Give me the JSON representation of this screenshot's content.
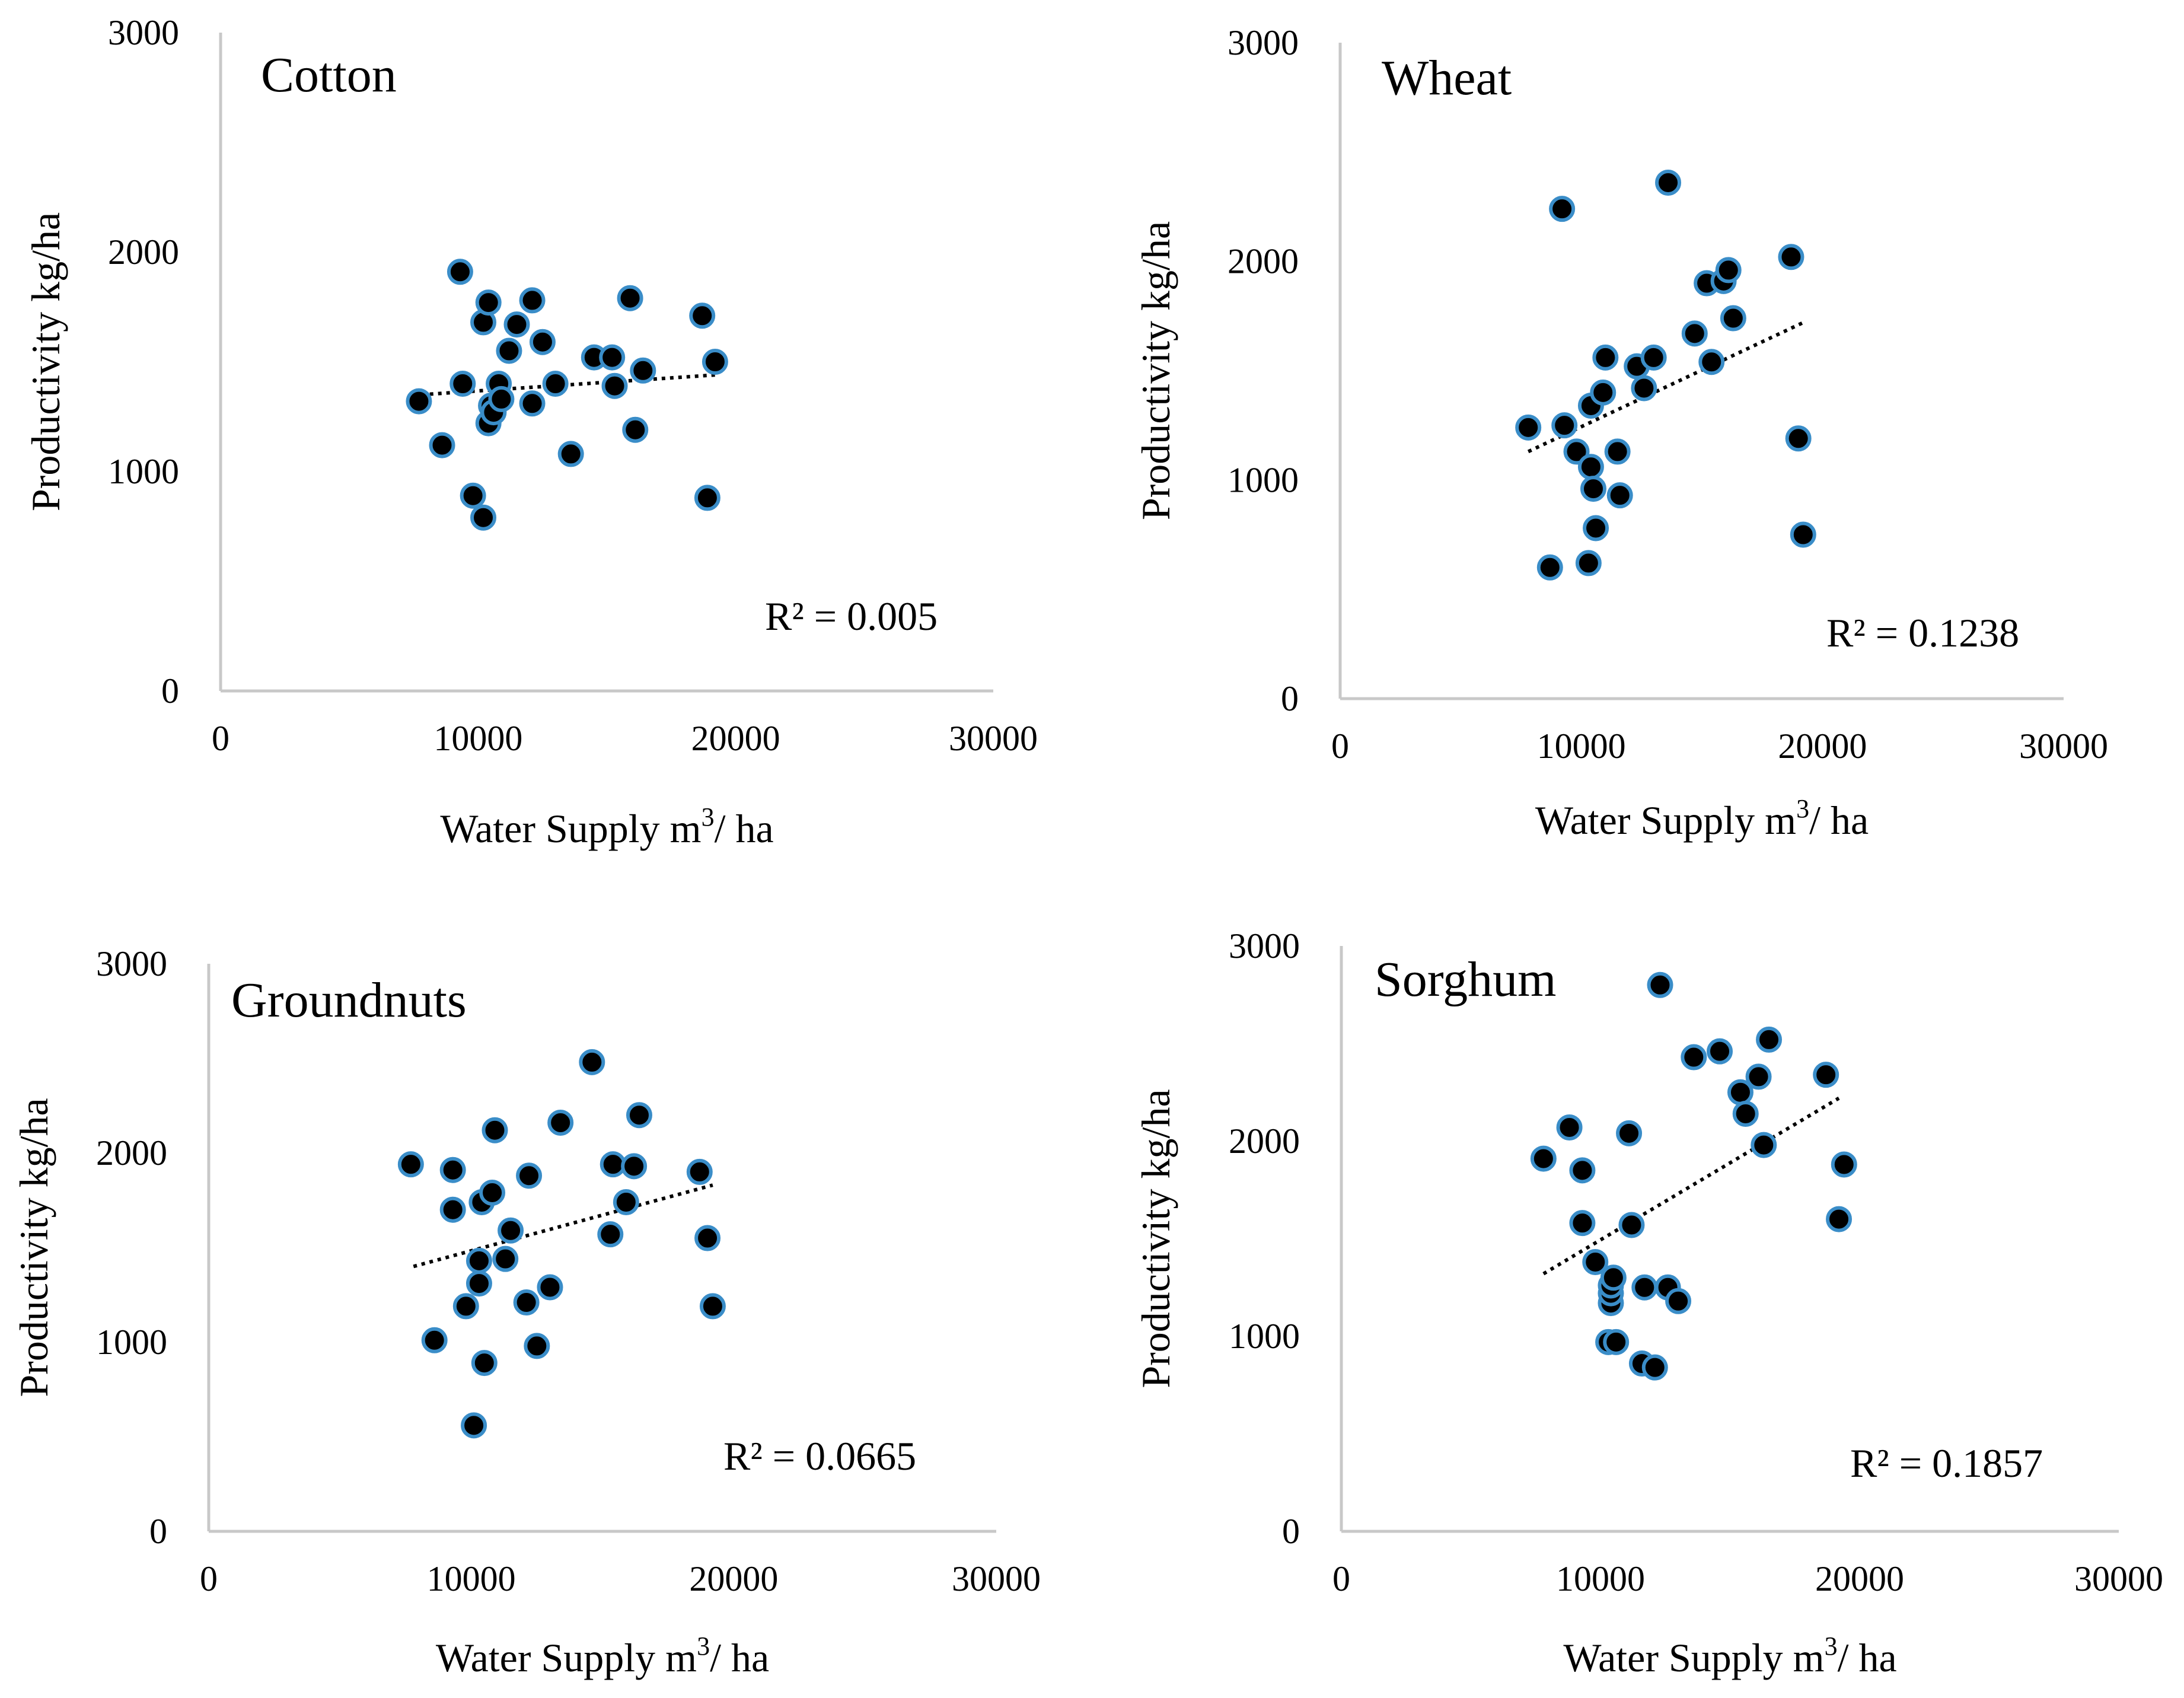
{
  "figure": {
    "marker_fill": "#000000",
    "marker_stroke": "#3a8dc8",
    "trendline_color": "#000000",
    "axis_color": "#c8c8c8"
  },
  "chart_data": [
    {
      "id": "cotton",
      "type": "scatter",
      "title": "Cotton",
      "xlabel": "Water Supply m3/ ha",
      "xlabel_main": "Water Supply m",
      "xlabel_sup": "3",
      "xlabel_tail": "/ ha",
      "ylabel": "Productivity kg/ha",
      "xlim": [
        0,
        30000
      ],
      "ylim": [
        0,
        3000
      ],
      "xticks": [
        0,
        10000,
        20000,
        30000
      ],
      "yticks": [
        0,
        1000,
        2000,
        3000
      ],
      "r2_text": "R² = 0.005",
      "trendline": {
        "x": [
          7800,
          19200
        ],
        "y": [
          1350,
          1440
        ]
      },
      "points": [
        [
          7700,
          1320
        ],
        [
          8600,
          1120
        ],
        [
          9300,
          1910
        ],
        [
          9400,
          1400
        ],
        [
          9800,
          890
        ],
        [
          10200,
          1680
        ],
        [
          10200,
          790
        ],
        [
          10400,
          1770
        ],
        [
          10400,
          1220
        ],
        [
          10500,
          1300
        ],
        [
          10600,
          1270
        ],
        [
          10800,
          1400
        ],
        [
          10900,
          1330
        ],
        [
          11200,
          1550
        ],
        [
          11500,
          1670
        ],
        [
          12100,
          1780
        ],
        [
          12100,
          1310
        ],
        [
          12500,
          1590
        ],
        [
          13000,
          1400
        ],
        [
          13600,
          1080
        ],
        [
          14500,
          1520
        ],
        [
          15200,
          1520
        ],
        [
          15300,
          1390
        ],
        [
          15900,
          1790
        ],
        [
          16100,
          1190
        ],
        [
          16400,
          1460
        ],
        [
          18700,
          1710
        ],
        [
          18900,
          880
        ],
        [
          19200,
          1500
        ]
      ]
    },
    {
      "id": "wheat",
      "type": "scatter",
      "title": "Wheat",
      "xlabel": "Water Supply m3/ ha",
      "xlabel_main": "Water Supply m",
      "xlabel_sup": "3",
      "xlabel_tail": "/ ha",
      "ylabel": "Productivity kg/ha",
      "xlim": [
        0,
        30000
      ],
      "ylim": [
        0,
        3000
      ],
      "xticks": [
        0,
        10000,
        20000,
        30000
      ],
      "yticks": [
        0,
        1000,
        2000,
        3000
      ],
      "r2_text": "R² = 0.1238",
      "trendline": {
        "x": [
          7800,
          19200
        ],
        "y": [
          1130,
          1720
        ]
      },
      "points": [
        [
          7800,
          1240
        ],
        [
          8700,
          600
        ],
        [
          9200,
          2240
        ],
        [
          9300,
          1250
        ],
        [
          9800,
          1130
        ],
        [
          10300,
          620
        ],
        [
          10400,
          1060
        ],
        [
          10400,
          1340
        ],
        [
          10500,
          960
        ],
        [
          10600,
          780
        ],
        [
          10900,
          1400
        ],
        [
          11000,
          1560
        ],
        [
          11500,
          1130
        ],
        [
          11600,
          930
        ],
        [
          12300,
          1520
        ],
        [
          12600,
          1420
        ],
        [
          13000,
          1560
        ],
        [
          13600,
          2360
        ],
        [
          14700,
          1670
        ],
        [
          15200,
          1900
        ],
        [
          15400,
          1540
        ],
        [
          15900,
          1910
        ],
        [
          16100,
          1960
        ],
        [
          16300,
          1740
        ],
        [
          18700,
          2020
        ],
        [
          19000,
          1190
        ],
        [
          19200,
          750
        ]
      ]
    },
    {
      "id": "groundnuts",
      "type": "scatter",
      "title": "Groundnuts",
      "xlabel": "Water Supply m3/ ha",
      "xlabel_main": "Water Supply m",
      "xlabel_sup": "3",
      "xlabel_tail": "/ ha",
      "ylabel": "Productivity kg/ha",
      "xlim": [
        0,
        30000
      ],
      "ylim": [
        0,
        3000
      ],
      "xticks": [
        0,
        10000,
        20000,
        30000
      ],
      "yticks": [
        0,
        1000,
        2000,
        3000
      ],
      "r2_text": "R² = 0.0665",
      "trendline": {
        "x": [
          7800,
          19200
        ],
        "y": [
          1400,
          1830
        ]
      },
      "points": [
        [
          7700,
          1940
        ],
        [
          8600,
          1010
        ],
        [
          9300,
          1910
        ],
        [
          9300,
          1700
        ],
        [
          9800,
          1190
        ],
        [
          10100,
          560
        ],
        [
          10300,
          1430
        ],
        [
          10300,
          1310
        ],
        [
          10400,
          1740
        ],
        [
          10500,
          890
        ],
        [
          10800,
          1790
        ],
        [
          10900,
          2120
        ],
        [
          11300,
          1440
        ],
        [
          11500,
          1590
        ],
        [
          12100,
          1210
        ],
        [
          12200,
          1880
        ],
        [
          12500,
          980
        ],
        [
          13000,
          1290
        ],
        [
          13400,
          2160
        ],
        [
          14600,
          2480
        ],
        [
          15300,
          1570
        ],
        [
          15400,
          1940
        ],
        [
          15900,
          1740
        ],
        [
          16200,
          1930
        ],
        [
          16400,
          2200
        ],
        [
          18700,
          1900
        ],
        [
          19000,
          1550
        ],
        [
          19200,
          1190
        ]
      ]
    },
    {
      "id": "sorghum",
      "type": "scatter",
      "title": "Sorghum",
      "xlabel": "Water Supply m3/ ha",
      "xlabel_main": "Water Supply m",
      "xlabel_sup": "3",
      "xlabel_tail": "/ ha",
      "ylabel": "Productivity kg/ha",
      "xlim": [
        0,
        30000
      ],
      "ylim": [
        0,
        3000
      ],
      "xticks": [
        0,
        10000,
        20000,
        30000
      ],
      "yticks": [
        0,
        1000,
        2000,
        3000
      ],
      "r2_text": "R² = 0.1857",
      "trendline": {
        "x": [
          7800,
          19200
        ],
        "y": [
          1320,
          2220
        ]
      },
      "points": [
        [
          7800,
          1910
        ],
        [
          8800,
          2070
        ],
        [
          9300,
          1580
        ],
        [
          9300,
          1850
        ],
        [
          9800,
          1380
        ],
        [
          10300,
          970
        ],
        [
          10400,
          1170
        ],
        [
          10400,
          1220
        ],
        [
          10400,
          1260
        ],
        [
          10500,
          1300
        ],
        [
          10600,
          970
        ],
        [
          11100,
          2040
        ],
        [
          11200,
          1570
        ],
        [
          11600,
          860
        ],
        [
          11700,
          1250
        ],
        [
          12100,
          840
        ],
        [
          12300,
          2800
        ],
        [
          12600,
          1250
        ],
        [
          13000,
          1180
        ],
        [
          13600,
          2430
        ],
        [
          14600,
          2460
        ],
        [
          15400,
          2250
        ],
        [
          15600,
          2140
        ],
        [
          16100,
          2330
        ],
        [
          16300,
          1980
        ],
        [
          16500,
          2520
        ],
        [
          18700,
          2340
        ],
        [
          19200,
          1600
        ],
        [
          19400,
          1880
        ]
      ]
    }
  ]
}
